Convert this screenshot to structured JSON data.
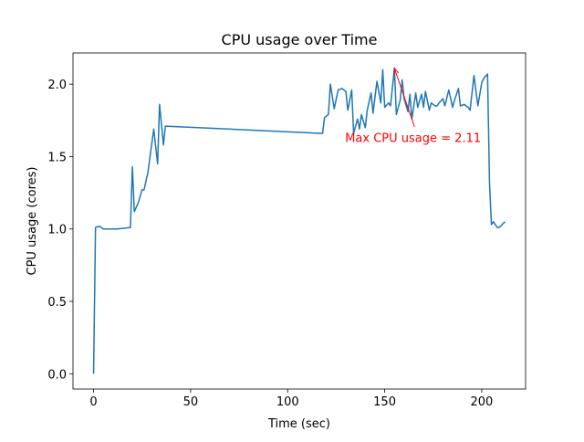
{
  "chart_data": {
    "type": "line",
    "title": "CPU usage over Time",
    "x_label": "Time (sec)",
    "y_label": "CPU usage (cores)",
    "x": [
      0,
      1,
      3,
      5,
      7,
      10,
      12,
      19,
      20,
      21,
      23,
      25,
      26,
      28,
      29,
      31,
      33,
      34,
      36,
      37,
      118,
      119,
      121,
      122,
      124,
      126,
      128,
      130,
      131,
      133,
      134,
      136,
      137,
      138,
      140,
      141,
      143,
      144,
      146,
      148,
      149,
      150,
      152,
      153,
      155,
      156,
      158,
      159,
      160,
      162,
      163,
      164,
      166,
      167,
      169,
      170,
      171,
      173,
      174,
      176,
      177,
      178,
      180,
      181,
      183,
      185,
      186,
      188,
      189,
      191,
      193,
      194,
      196,
      198,
      200,
      201,
      203,
      204,
      205,
      206,
      208,
      209,
      212
    ],
    "series": [
      {
        "name": "CPU usage",
        "color": "#1f77b4",
        "values": [
          0,
          1.01,
          1.02,
          1.0,
          1.0,
          1.0,
          1.0,
          1.01,
          1.43,
          1.12,
          1.18,
          1.27,
          1.27,
          1.39,
          1.49,
          1.69,
          1.45,
          1.86,
          1.58,
          1.71,
          1.66,
          1.77,
          1.79,
          2.0,
          1.83,
          1.96,
          1.97,
          1.95,
          1.82,
          1.96,
          1.66,
          1.76,
          1.69,
          1.79,
          1.7,
          1.82,
          1.94,
          1.8,
          2.02,
          1.87,
          2.1,
          1.84,
          1.87,
          1.85,
          2.11,
          1.79,
          1.89,
          2.03,
          1.9,
          1.81,
          1.93,
          1.76,
          1.94,
          1.84,
          1.93,
          1.84,
          1.95,
          1.82,
          1.87,
          1.85,
          1.85,
          1.87,
          1.9,
          1.85,
          1.96,
          1.84,
          1.89,
          1.97,
          1.85,
          1.86,
          1.84,
          1.82,
          2.06,
          1.85,
          2.01,
          2.04,
          2.07,
          1.32,
          1.03,
          1.05,
          1.01,
          1.01,
          1.05
        ]
      }
    ],
    "xlim": [
      -10.6,
      222.6
    ],
    "ylim": [
      -0.1055,
      2.2155
    ],
    "xticks": [
      0,
      50,
      100,
      150,
      200
    ],
    "yticks": [
      {
        "value": 0,
        "label": "0.0"
      },
      {
        "value": 0.5,
        "label": "0.5"
      },
      {
        "value": 1,
        "label": "1.0"
      },
      {
        "value": 1.5,
        "label": "1.5"
      },
      {
        "value": 2,
        "label": "2.0"
      }
    ],
    "annotation": {
      "text": "Max CPU usage = 2.11",
      "x": 155,
      "y": 2.11,
      "color": "#ff0000"
    }
  }
}
